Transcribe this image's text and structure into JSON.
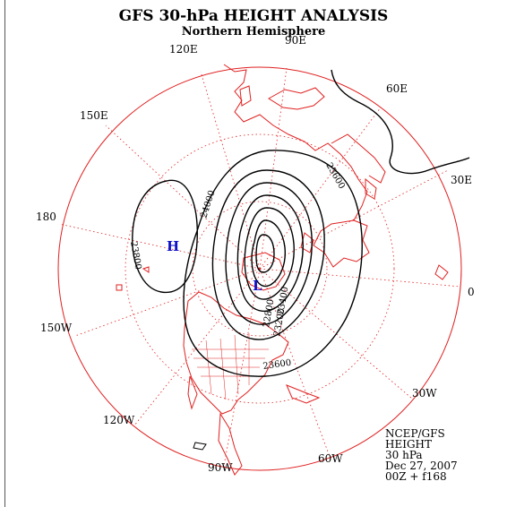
{
  "title": "GFS 30-hPa HEIGHT ANALYSIS",
  "subtitle": "Northern Hemisphere",
  "longitude_labels": {
    "e90": "90E",
    "e120": "120E",
    "e60": "60E",
    "e150": "150E",
    "e30": "30E",
    "d180": "180",
    "zero": "0",
    "w150": "150W",
    "w30": "30W",
    "w120": "120W",
    "w60": "60W",
    "w90": "90W"
  },
  "contour_labels": {
    "c1": "23600",
    "c2": "24000",
    "c3": "23800",
    "c4": "23600",
    "c5": "22800",
    "c6": "23200",
    "c7": "23400"
  },
  "centers": {
    "high": "H",
    "low": "L"
  },
  "info": {
    "source": "NCEP/GFS",
    "field": "HEIGHT",
    "level": "30 hPa",
    "date": "Dec 27, 2007",
    "run": "00Z + f168"
  },
  "colors": {
    "map_lines": "#e02020",
    "contours": "#000000",
    "centers": "#1010c8"
  }
}
